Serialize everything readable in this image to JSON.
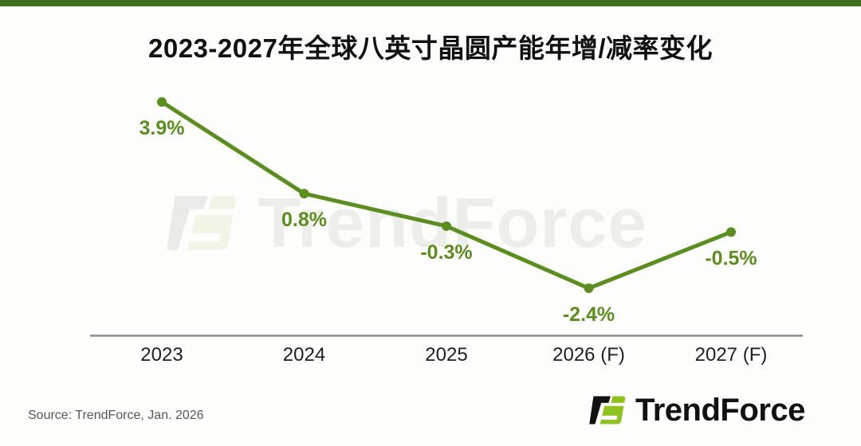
{
  "header": {
    "title": "2023-2027年全球八英寸晶圆产能年增/减率变化"
  },
  "chart_data": {
    "type": "line",
    "title": "2023-2027年全球八英寸晶圆产能年增/减率变化",
    "categories": [
      "2023",
      "2024",
      "2025",
      "2026 (F)",
      "2027 (F)"
    ],
    "values": [
      3.9,
      0.8,
      -0.3,
      -2.4,
      -0.5
    ],
    "data_labels": [
      "3.9%",
      "0.8%",
      "-0.3%",
      "-2.4%",
      "-0.5%"
    ],
    "xlabel": "",
    "ylabel": "",
    "ylim": [
      -4,
      5
    ],
    "grid": false,
    "legend": false,
    "line_color": "#5b8d21",
    "marker_color": "#5b8d21",
    "label_color": "#5b8d21",
    "tick_color": "#1f1f1f",
    "axis_color": "#8c8c8c"
  },
  "watermark": {
    "text": "TrendForce"
  },
  "footer": {
    "source": "Source: TrendForce, Jan. 2026",
    "logo_text": "TrendForce"
  },
  "colors": {
    "top_bar": "#3e701e",
    "background": "#fdfefb",
    "logo_green": "#8dc21f",
    "logo_black": "#111111",
    "title_text": "#111111",
    "source_text": "#575757"
  }
}
